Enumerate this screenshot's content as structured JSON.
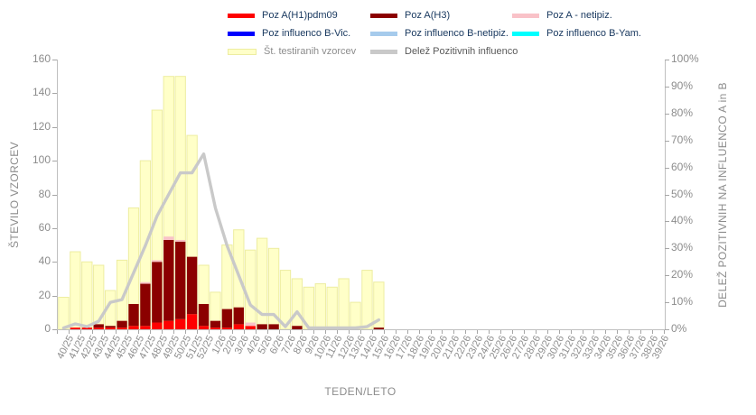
{
  "legend": {
    "items": [
      {
        "label": "Poz A(H1)pdm09",
        "color": "#fe0000",
        "text_color": "#17375e"
      },
      {
        "label": "Poz A(H3)",
        "color": "#8b0000",
        "text_color": "#17375e"
      },
      {
        "label": "Poz A - netipiz.",
        "color": "#f9c2c8",
        "text_color": "#17375e"
      },
      {
        "label": "Poz influenco B-Vic.",
        "color": "#0000fe",
        "text_color": "#17375e"
      },
      {
        "label": "Poz influenco B-netipiz.",
        "color": "#a6cbec",
        "text_color": "#17375e"
      },
      {
        "label": "Poz influenco B-Yam.",
        "color": "#00ffff",
        "text_color": "#17375e"
      },
      {
        "label": "Št. testiranih vzorcev",
        "color": "#ffffc8",
        "text_color": "#8c8c8c",
        "border": "#ededa0"
      },
      {
        "label": "Delež Pozitivnih influenco",
        "color": "#c9c9c9",
        "text_color": "#595959"
      }
    ]
  },
  "axes": {
    "left_title": "ŠTEVILO VZORCEV",
    "right_title": "DELEŽ POZITIVNIH  NA INFLUENCO  A in B",
    "x_title": "TEDEN/LETO"
  },
  "chart_data": {
    "type": "bar",
    "subtype": "stacked bars with overlay total bar and percentage line",
    "categories": [
      "40/25",
      "41/25",
      "42/25",
      "43/25",
      "44/25",
      "45/25",
      "46/25",
      "47/25",
      "48/25",
      "49/25",
      "50/25",
      "51/25",
      "52/25",
      "1/26",
      "2/26",
      "3/26",
      "4/26",
      "5/26",
      "6/26",
      "7/26",
      "8/26",
      "9/26",
      "10/26",
      "11/26",
      "12/26",
      "13/26",
      "14/26",
      "15/26",
      "16/26",
      "17/26",
      "18/26",
      "19/26",
      "20/26",
      "21/26",
      "22/26",
      "23/26",
      "24/26",
      "25/26",
      "26/26",
      "27/26",
      "28/26",
      "29/26",
      "30/26",
      "31/26",
      "32/26",
      "33/26",
      "34/26",
      "35/26",
      "36/26",
      "37/26",
      "38/26",
      "39/26"
    ],
    "tested": {
      "name": "Št. testiranih vzorcev",
      "color": "#ffffc8",
      "border": "#ededa0",
      "values": [
        19,
        46,
        40,
        38,
        23,
        41,
        72,
        100,
        130,
        150,
        150,
        115,
        38,
        22,
        50,
        59,
        47,
        54,
        48,
        35,
        30,
        25,
        27,
        25,
        30,
        16,
        35,
        28,
        0,
        0,
        0,
        0,
        0,
        0,
        0,
        0,
        0,
        0,
        0,
        0,
        0,
        0,
        0,
        0,
        0,
        0,
        0,
        0,
        0,
        0,
        0,
        0
      ]
    },
    "series": [
      {
        "name": "Poz A(H1)pdm09",
        "color": "#fe0000",
        "values": [
          0,
          1,
          1,
          1,
          1,
          1,
          2,
          2,
          4,
          5,
          6,
          9,
          2,
          1,
          1,
          3,
          2,
          0,
          0,
          0,
          0,
          0,
          0,
          0,
          0,
          0,
          0,
          0,
          0,
          0,
          0,
          0,
          0,
          0,
          0,
          0,
          0,
          0,
          0,
          0,
          0,
          0,
          0,
          0,
          0,
          0,
          0,
          0,
          0,
          0,
          0,
          0
        ]
      },
      {
        "name": "Poz A(H3)",
        "color": "#8b0000",
        "values": [
          0,
          0,
          0,
          2,
          1,
          4,
          13,
          25,
          36,
          48,
          46,
          34,
          13,
          4,
          11,
          10,
          0,
          3,
          3,
          0,
          2,
          0,
          0,
          0,
          0,
          0,
          0,
          1,
          0,
          0,
          0,
          0,
          0,
          0,
          0,
          0,
          0,
          0,
          0,
          0,
          0,
          0,
          0,
          0,
          0,
          0,
          0,
          0,
          0,
          0,
          0,
          0
        ]
      },
      {
        "name": "Poz A - netipiz.",
        "color": "#f9c2c8",
        "values": [
          0,
          0,
          0,
          0,
          0,
          0,
          0,
          1,
          1,
          2,
          1,
          0,
          0,
          0,
          0,
          0,
          2,
          0,
          0,
          0,
          0,
          0,
          0,
          0,
          0,
          0,
          0,
          0,
          0,
          0,
          0,
          0,
          0,
          0,
          0,
          0,
          0,
          0,
          0,
          0,
          0,
          0,
          0,
          0,
          0,
          0,
          0,
          0,
          0,
          0,
          0,
          0
        ]
      },
      {
        "name": "Poz influenco B-Vic.",
        "color": "#0000fe",
        "values": [
          0,
          0,
          0,
          0,
          0,
          0,
          0,
          0,
          0,
          0,
          0,
          0,
          0,
          0,
          0,
          0,
          0,
          0,
          0,
          0,
          0,
          0,
          0,
          0,
          0,
          0,
          0,
          0,
          0,
          0,
          0,
          0,
          0,
          0,
          0,
          0,
          0,
          0,
          0,
          0,
          0,
          0,
          0,
          0,
          0,
          0,
          0,
          0,
          0,
          0,
          0,
          0
        ]
      },
      {
        "name": "Poz influenco B-netipiz.",
        "color": "#a6cbec",
        "values": [
          0,
          0,
          0,
          0,
          0,
          0,
          0,
          0,
          0,
          0,
          0,
          0,
          0,
          0,
          0,
          0,
          0,
          0,
          0,
          0,
          0,
          0,
          0,
          0,
          0,
          0,
          0,
          0,
          0,
          0,
          0,
          0,
          0,
          0,
          0,
          0,
          0,
          0,
          0,
          0,
          0,
          0,
          0,
          0,
          0,
          0,
          0,
          0,
          0,
          0,
          0,
          0
        ]
      },
      {
        "name": "Poz influenco B-Yam.",
        "color": "#00ffff",
        "values": [
          0,
          0,
          0,
          0,
          0,
          0,
          0,
          0,
          0,
          0,
          0,
          0,
          0,
          0,
          0,
          0,
          0,
          0,
          0,
          0,
          0,
          0,
          0,
          0,
          0,
          0,
          0,
          0,
          0,
          0,
          0,
          0,
          0,
          0,
          0,
          0,
          0,
          0,
          0,
          0,
          0,
          0,
          0,
          0,
          0,
          0,
          0,
          0,
          0,
          0,
          0,
          0
        ]
      }
    ],
    "line": {
      "name": "Delež Pozitivnih influenco",
      "color": "#c9c9c9",
      "values_pct": [
        0.5,
        2,
        1,
        3,
        10,
        11,
        21,
        31,
        42,
        50,
        58,
        58,
        65,
        45,
        31,
        20,
        9,
        5.5,
        5.5,
        1,
        6.5,
        0.5,
        0.5,
        0.5,
        0.5,
        0.5,
        1,
        3.5,
        null,
        null,
        null,
        null,
        null,
        null,
        null,
        null,
        null,
        null,
        null,
        null,
        null,
        null,
        null,
        null,
        null,
        null,
        null,
        null,
        null,
        null,
        null,
        null
      ]
    },
    "y_left": {
      "title": "ŠTEVILO VZORCEV",
      "min": 0,
      "max": 160,
      "step": 20
    },
    "y_right": {
      "title": "DELEŽ POZITIVNIH  NA INFLUENCO  A in B",
      "min": 0,
      "max": 100,
      "step": 10,
      "suffix": "%"
    },
    "x_title": "TEDEN/LETO",
    "grid": false,
    "legend_position": "top"
  }
}
